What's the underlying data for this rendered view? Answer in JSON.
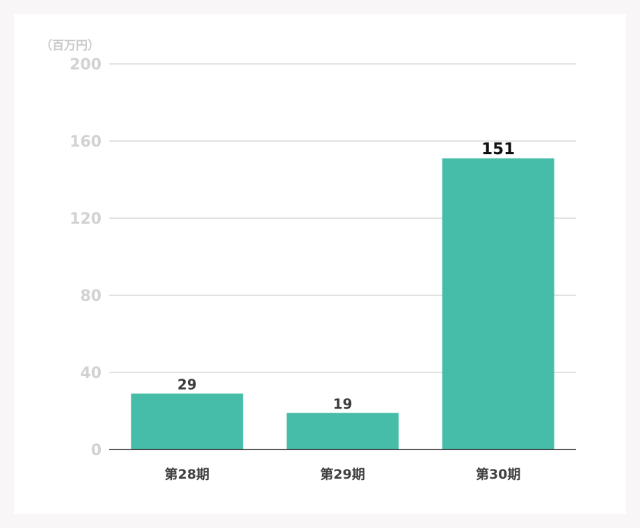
{
  "chart_data": {
    "type": "bar",
    "unit_label": "（百万円）",
    "categories": [
      "第28期",
      "第29期",
      "第30期"
    ],
    "values": [
      29,
      19,
      151
    ],
    "data_labels": [
      "29",
      "19",
      "151"
    ],
    "highlight_index": 2,
    "ylim": [
      0,
      200
    ],
    "yticks": [
      0,
      40,
      80,
      120,
      160,
      200
    ],
    "grid": true,
    "legend": "none",
    "bar_color": "#45bda8",
    "grid_color": "#d9d9d9",
    "axis_color": "#222222"
  }
}
